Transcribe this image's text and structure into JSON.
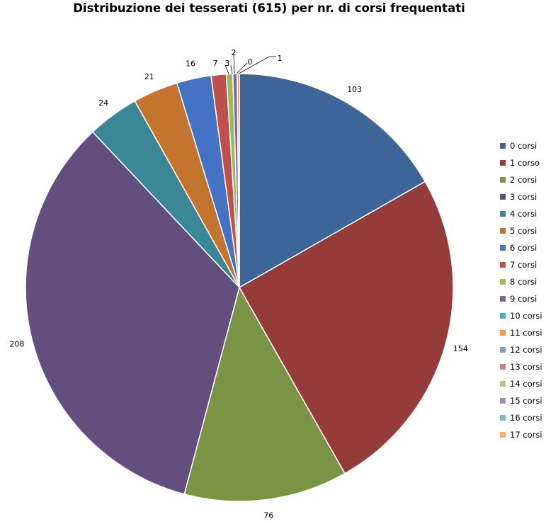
{
  "chart_data": {
    "type": "pie",
    "title": "Distribuzione dei tesserati (615) per nr. di corsi frequentati",
    "categories": [
      "0 corsi",
      "1 corso",
      "2 corsi",
      "3 corsi",
      "4 corsi",
      "5 corsi",
      "6 corsi",
      "7 corsi",
      "8 corsi",
      "9 corsi",
      "10 corsi",
      "11 corsi",
      "12 corsi",
      "13 corsi",
      "14 corsi",
      "15 corsi",
      "16 corsi",
      "17 corsi"
    ],
    "values": [
      103,
      154,
      76,
      208,
      24,
      21,
      16,
      7,
      3,
      2,
      0,
      1,
      0,
      0,
      0,
      0,
      0,
      0
    ],
    "colors": [
      "#3E6598",
      "#953C3B",
      "#7A9446",
      "#634E7E",
      "#3B8797",
      "#C3742F",
      "#4472C4",
      "#C0504D",
      "#9BBB59",
      "#8064A2",
      "#4BACC6",
      "#F79646",
      "#7F9FC9",
      "#D07F7C",
      "#AFC97F",
      "#9D89B8",
      "#79B9D1",
      "#F7AD76"
    ],
    "legend_position": "right"
  }
}
